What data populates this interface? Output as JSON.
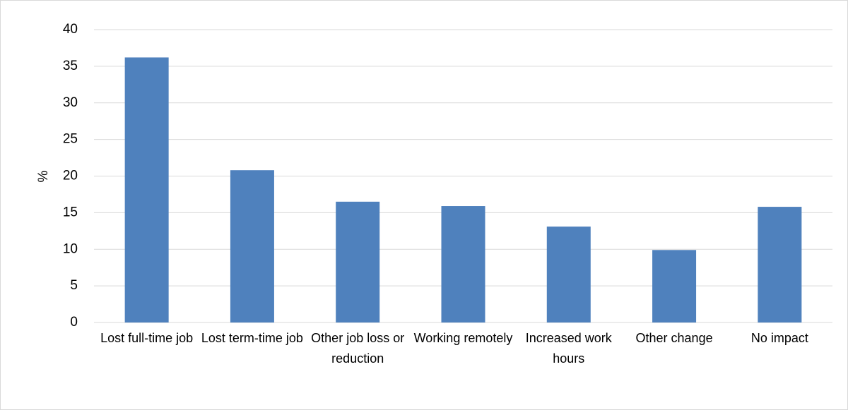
{
  "chart_data": {
    "type": "bar",
    "y_label": "%",
    "categories": [
      "Lost full-time job",
      "Lost term-time job",
      "Other job loss or reduction",
      "Working remotely",
      "Increased work hours",
      "Other change",
      "No impact"
    ],
    "values": [
      36.2,
      20.8,
      16.5,
      15.9,
      13.1,
      9.9,
      15.8
    ],
    "color": "#4f81bd",
    "ylim": [
      0,
      40
    ],
    "yticks": [
      0,
      5,
      10,
      15,
      20,
      25,
      30,
      35,
      40
    ],
    "grid": true
  }
}
